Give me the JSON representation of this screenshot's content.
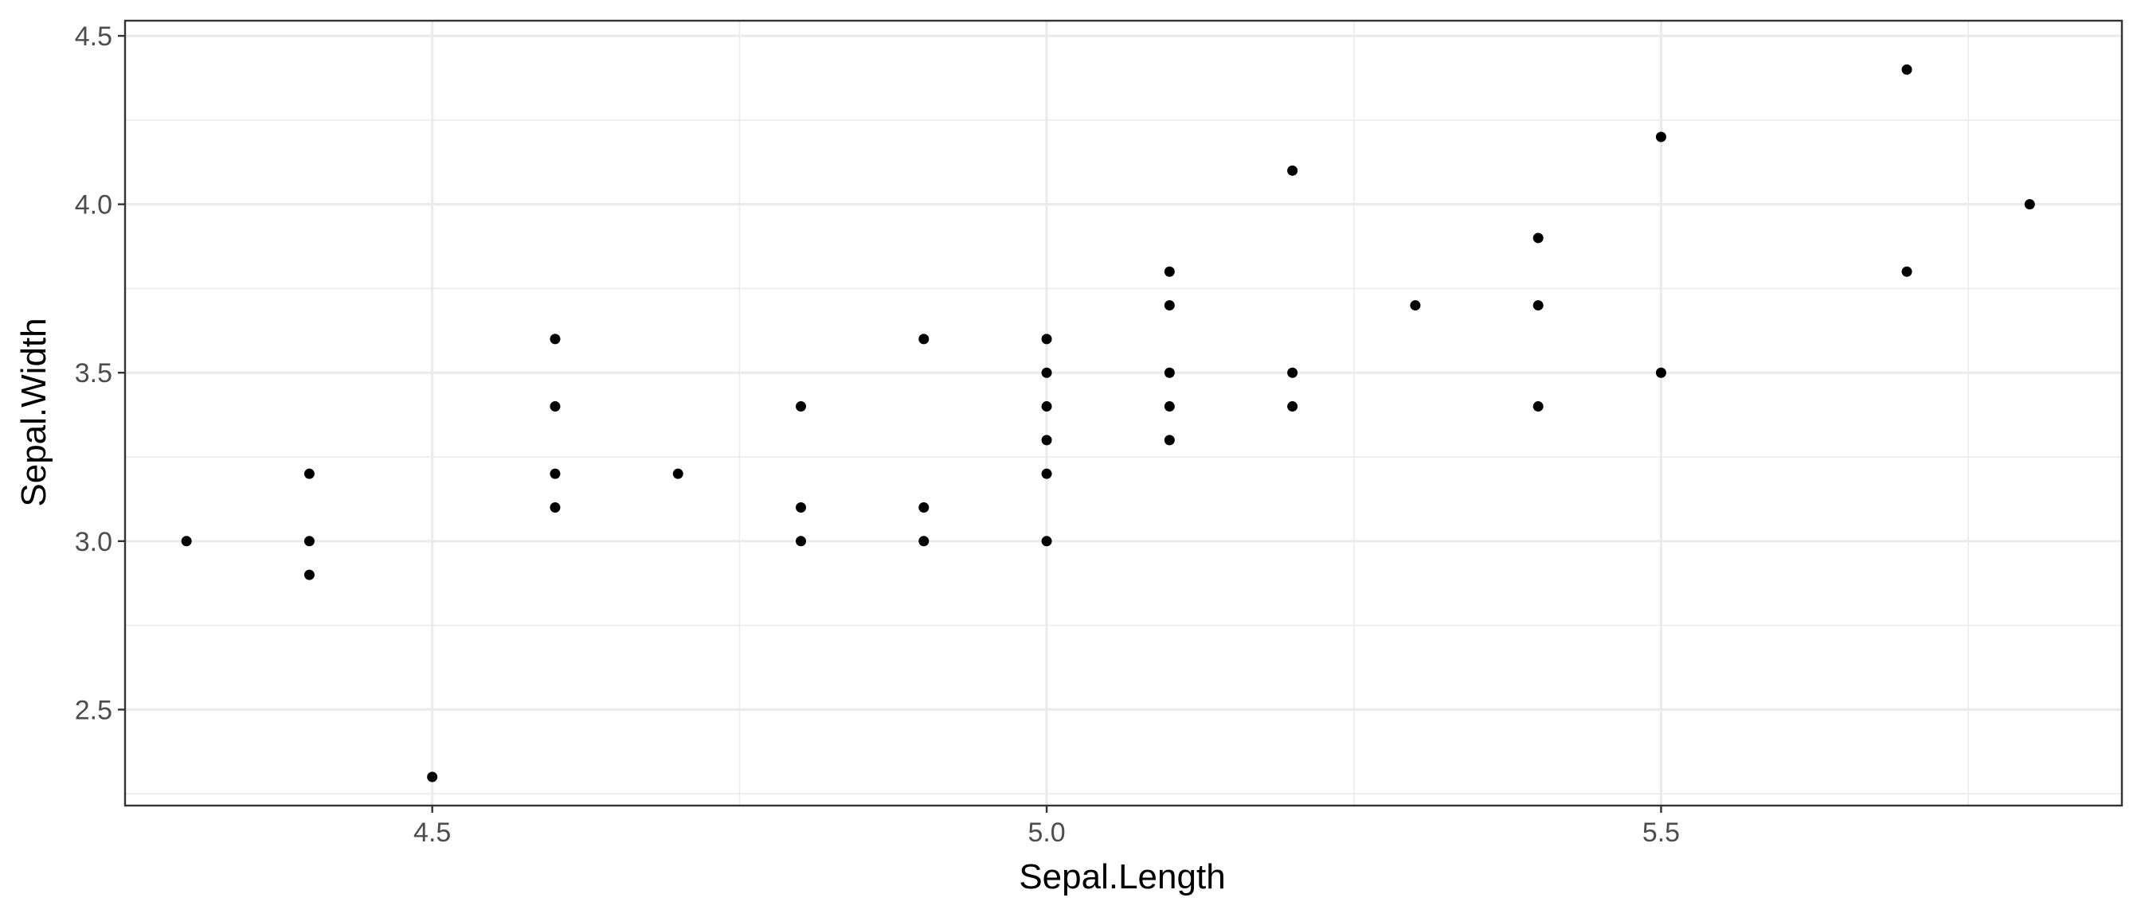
{
  "chart_data": {
    "type": "scatter",
    "xlabel": "Sepal.Length",
    "ylabel": "Sepal.Width",
    "xlim": [
      4.25,
      5.875
    ],
    "ylim": [
      2.215,
      4.545
    ],
    "x_major_ticks": [
      4.5,
      5.0,
      5.5
    ],
    "x_minor_ticks": [
      4.25,
      4.75,
      5.25,
      5.75
    ],
    "x_tick_labels": [
      "4.5",
      "5.0",
      "5.5"
    ],
    "y_major_ticks": [
      2.5,
      3.0,
      3.5,
      4.0,
      4.5
    ],
    "y_minor_ticks": [
      2.25,
      2.75,
      3.25,
      3.75,
      4.25
    ],
    "y_tick_labels": [
      "2.5",
      "3.0",
      "3.5",
      "4.0",
      "4.5"
    ],
    "grid": true,
    "colors": {
      "point": "#000000",
      "grid": "#ebebeb",
      "border": "#333333",
      "tick_label": "#4d4d4d"
    },
    "points": [
      {
        "x": 4.3,
        "y": 3.0
      },
      {
        "x": 4.4,
        "y": 3.2
      },
      {
        "x": 4.4,
        "y": 3.0
      },
      {
        "x": 4.4,
        "y": 2.9
      },
      {
        "x": 4.5,
        "y": 2.3
      },
      {
        "x": 4.6,
        "y": 3.6
      },
      {
        "x": 4.6,
        "y": 3.4
      },
      {
        "x": 4.6,
        "y": 3.2
      },
      {
        "x": 4.6,
        "y": 3.1
      },
      {
        "x": 4.7,
        "y": 3.2
      },
      {
        "x": 4.8,
        "y": 3.4
      },
      {
        "x": 4.8,
        "y": 3.1
      },
      {
        "x": 4.8,
        "y": 3.0
      },
      {
        "x": 4.9,
        "y": 3.6
      },
      {
        "x": 4.9,
        "y": 3.1
      },
      {
        "x": 4.9,
        "y": 3.0
      },
      {
        "x": 5.0,
        "y": 3.6
      },
      {
        "x": 5.0,
        "y": 3.5
      },
      {
        "x": 5.0,
        "y": 3.4
      },
      {
        "x": 5.0,
        "y": 3.3
      },
      {
        "x": 5.0,
        "y": 3.2
      },
      {
        "x": 5.0,
        "y": 3.0
      },
      {
        "x": 5.1,
        "y": 3.8
      },
      {
        "x": 5.1,
        "y": 3.7
      },
      {
        "x": 5.1,
        "y": 3.5
      },
      {
        "x": 5.1,
        "y": 3.4
      },
      {
        "x": 5.1,
        "y": 3.3
      },
      {
        "x": 5.2,
        "y": 4.1
      },
      {
        "x": 5.2,
        "y": 3.5
      },
      {
        "x": 5.2,
        "y": 3.4
      },
      {
        "x": 5.3,
        "y": 3.7
      },
      {
        "x": 5.4,
        "y": 3.9
      },
      {
        "x": 5.4,
        "y": 3.7
      },
      {
        "x": 5.4,
        "y": 3.4
      },
      {
        "x": 5.5,
        "y": 4.2
      },
      {
        "x": 5.5,
        "y": 3.5
      },
      {
        "x": 5.7,
        "y": 4.4
      },
      {
        "x": 5.7,
        "y": 3.8
      },
      {
        "x": 5.8,
        "y": 4.0
      }
    ]
  }
}
